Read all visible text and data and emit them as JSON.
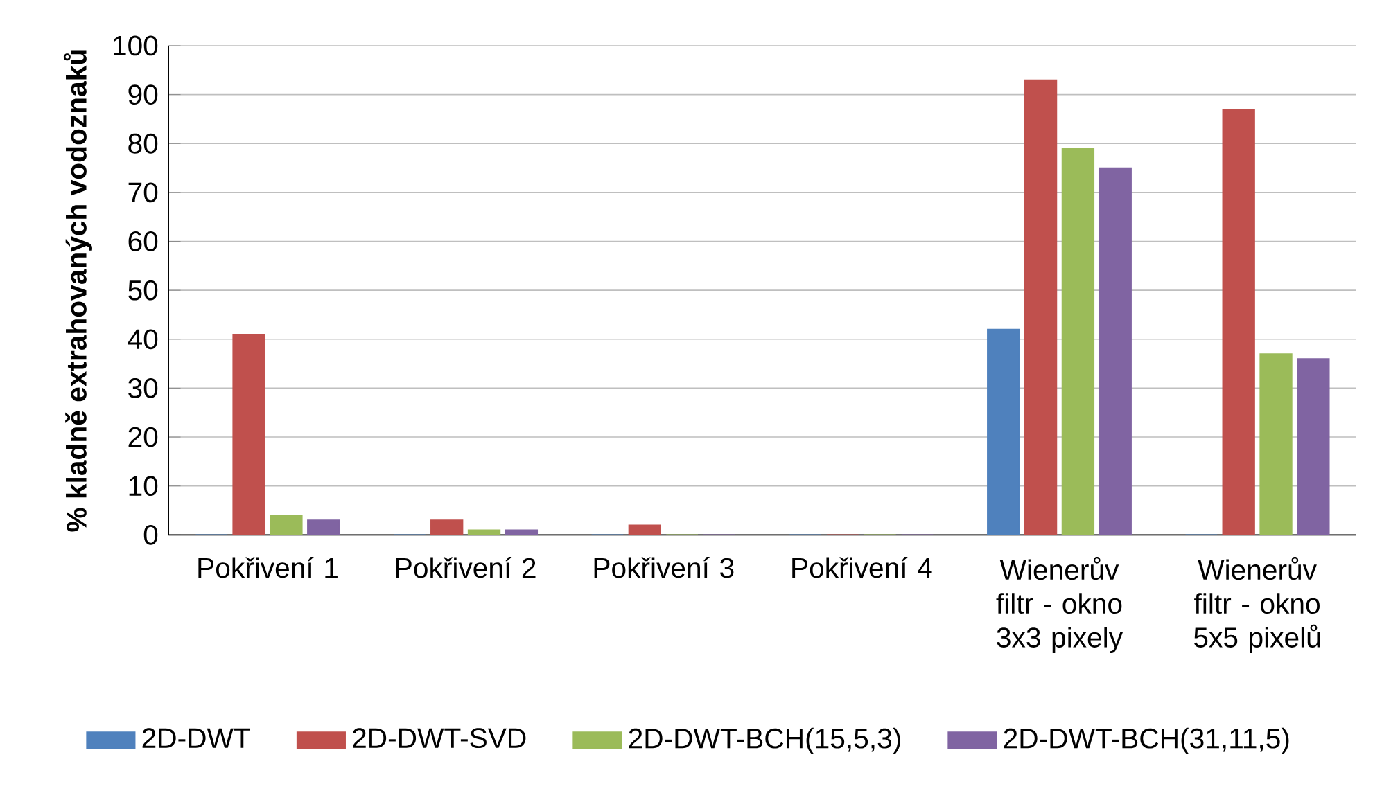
{
  "chart_data": {
    "type": "bar",
    "ylabel": "% kladně extrahovaných vodoznaků",
    "categories": [
      "Pokřivení 1",
      "Pokřivení 2",
      "Pokřivení 3",
      "Pokřivení 4",
      "Wienerův filtr - okno 3x3 pixely",
      "Wienerův filtr - okno 5x5 pixelů"
    ],
    "series": [
      {
        "name": "2D-DWT",
        "color": "#4f81bd",
        "values": [
          0,
          0,
          0,
          0,
          42,
          0
        ]
      },
      {
        "name": "2D-DWT-SVD",
        "color": "#c0504d",
        "values": [
          41,
          3,
          2,
          0,
          93,
          87
        ]
      },
      {
        "name": "2D-DWT-BCH(15,5,3)",
        "color": "#9bbb59",
        "values": [
          4,
          1,
          0,
          0,
          79,
          37
        ]
      },
      {
        "name": "2D-DWT-BCH(31,11,5)",
        "color": "#8064a2",
        "values": [
          3,
          1,
          0,
          0,
          75,
          36
        ]
      }
    ],
    "ylim": [
      0,
      100
    ],
    "yticks": [
      0,
      10,
      20,
      30,
      40,
      50,
      60,
      70,
      80,
      90,
      100
    ],
    "grid": "y",
    "legend": "bottom"
  }
}
